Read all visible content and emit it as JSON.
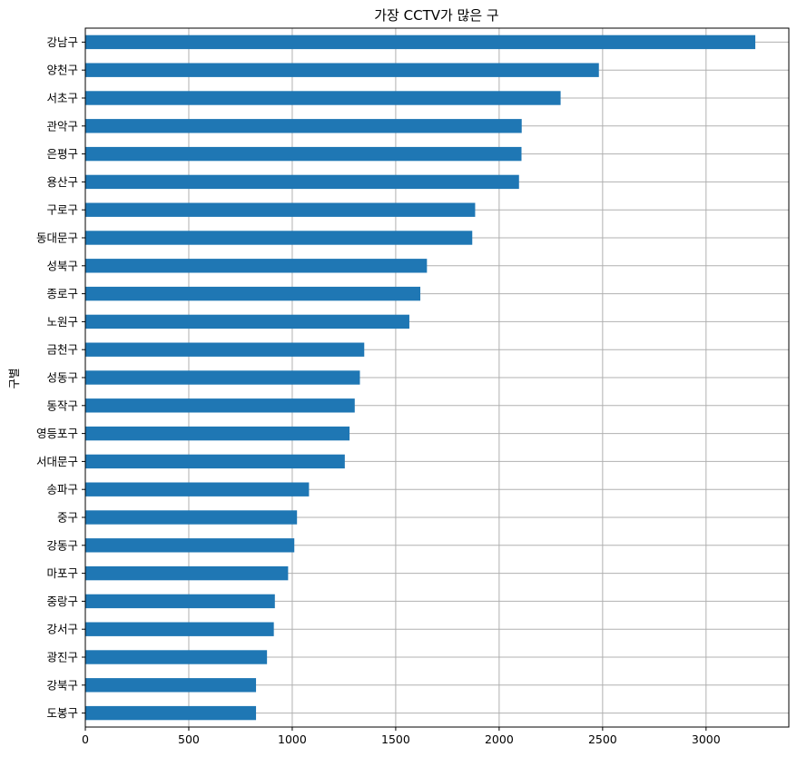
{
  "chart_data": {
    "type": "bar",
    "orientation": "horizontal",
    "title": "가장 CCTV가 많은 구",
    "xlabel": "",
    "ylabel": "구별",
    "categories": [
      "강남구",
      "양천구",
      "서초구",
      "관악구",
      "은평구",
      "용산구",
      "구로구",
      "동대문구",
      "성북구",
      "종로구",
      "노원구",
      "금천구",
      "성동구",
      "동작구",
      "영등포구",
      "서대문구",
      "송파구",
      "중구",
      "강동구",
      "마포구",
      "중랑구",
      "강서구",
      "광진구",
      "강북구",
      "도봉구"
    ],
    "values": [
      3238,
      2482,
      2297,
      2109,
      2108,
      2096,
      1884,
      1870,
      1651,
      1619,
      1566,
      1348,
      1327,
      1302,
      1277,
      1254,
      1081,
      1023,
      1010,
      980,
      916,
      911,
      878,
      825,
      825
    ],
    "xlim": [
      0,
      3400
    ],
    "xticks": [
      "0",
      "500",
      "1000",
      "1500",
      "2000",
      "2500",
      "3000"
    ],
    "grid": true,
    "bar_color": "#1f77b4"
  }
}
